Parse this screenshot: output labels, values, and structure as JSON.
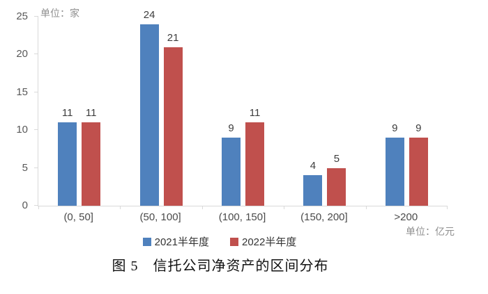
{
  "chart_data": {
    "type": "bar",
    "title": "图 5　信托公司净资产的区间分布",
    "unit_y": "单位：家",
    "unit_x": "单位：亿元",
    "categories": [
      "(0, 50]",
      "(50, 100]",
      "(100, 150]",
      "(150, 200]",
      ">200"
    ],
    "series": [
      {
        "name": "2021半年度",
        "color": "#4F81BD",
        "values": [
          11,
          24,
          9,
          4,
          9
        ]
      },
      {
        "name": "2022半年度",
        "color": "#C0504D",
        "values": [
          11,
          21,
          11,
          5,
          9
        ]
      }
    ],
    "ylim": [
      0,
      25
    ],
    "yticks": [
      0,
      5,
      10,
      15,
      20,
      25
    ],
    "grid": false,
    "legend_position": "bottom",
    "axis_color": "#d9d9d9"
  }
}
